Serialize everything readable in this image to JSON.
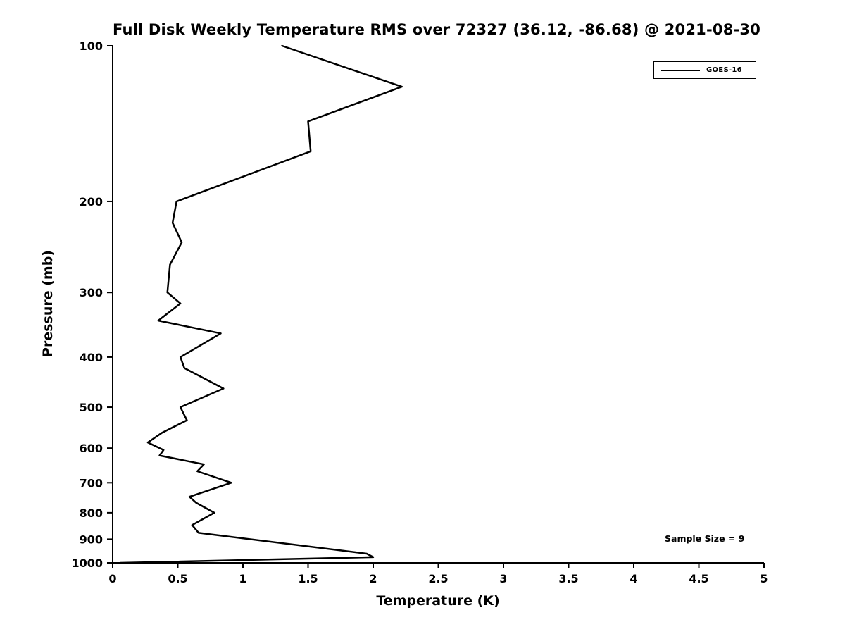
{
  "title": "Full Disk Weekly Temperature RMS over 72327 (36.12, -86.68) @ 2021-08-30",
  "xlabel": "Temperature (K)",
  "ylabel": "Pressure (mb)",
  "annotation": "Sample Size = 9",
  "legend": {
    "label": "GOES-16",
    "line_color": "#000000",
    "position": "top-right"
  },
  "axes": {
    "x_tick_values": [
      0,
      0.5,
      1,
      1.5,
      2,
      2.5,
      3,
      3.5,
      4,
      4.5,
      5
    ],
    "x_tick_labels": [
      "0",
      "0.5",
      "1",
      "1.5",
      "2",
      "2.5",
      "3",
      "3.5",
      "4",
      "4.5",
      "5"
    ],
    "y_tick_values": [
      100,
      200,
      300,
      400,
      500,
      600,
      700,
      800,
      900,
      1000
    ],
    "y_tick_labels": [
      "100",
      "200",
      "300",
      "400",
      "500",
      "600",
      "700",
      "800",
      "900",
      "1000"
    ]
  },
  "chart_data": {
    "type": "line",
    "title": "Full Disk Weekly Temperature RMS over 72327 (36.12, -86.68) @ 2021-08-30",
    "xlabel": "Temperature (K)",
    "ylabel": "Pressure (mb)",
    "xlim": [
      0,
      5
    ],
    "ylim": [
      100,
      1000
    ],
    "y_scale": "log",
    "y_inverted": true,
    "grid": false,
    "legend_position": "top-right",
    "annotations": [
      "Sample Size = 9"
    ],
    "sample_size": 9,
    "series": [
      {
        "name": "GOES-16",
        "color": "#000000",
        "temperature_K": [
          1.3,
          2.22,
          1.5,
          1.52,
          0.49,
          0.46,
          0.53,
          0.44,
          0.42,
          0.52,
          0.35,
          0.83,
          0.52,
          0.55,
          0.85,
          0.52,
          0.57,
          0.38,
          0.27,
          0.39,
          0.36,
          0.7,
          0.65,
          0.91,
          0.59,
          0.64,
          0.78,
          0.61,
          0.66,
          1.95,
          2.0,
          0.06
        ],
        "pressure_mb": [
          100,
          120,
          140,
          160,
          200,
          220,
          240,
          265,
          300,
          315,
          340,
          360,
          400,
          420,
          460,
          500,
          530,
          560,
          585,
          605,
          620,
          645,
          665,
          700,
          745,
          765,
          800,
          845,
          875,
          960,
          975,
          1000
        ]
      }
    ]
  }
}
